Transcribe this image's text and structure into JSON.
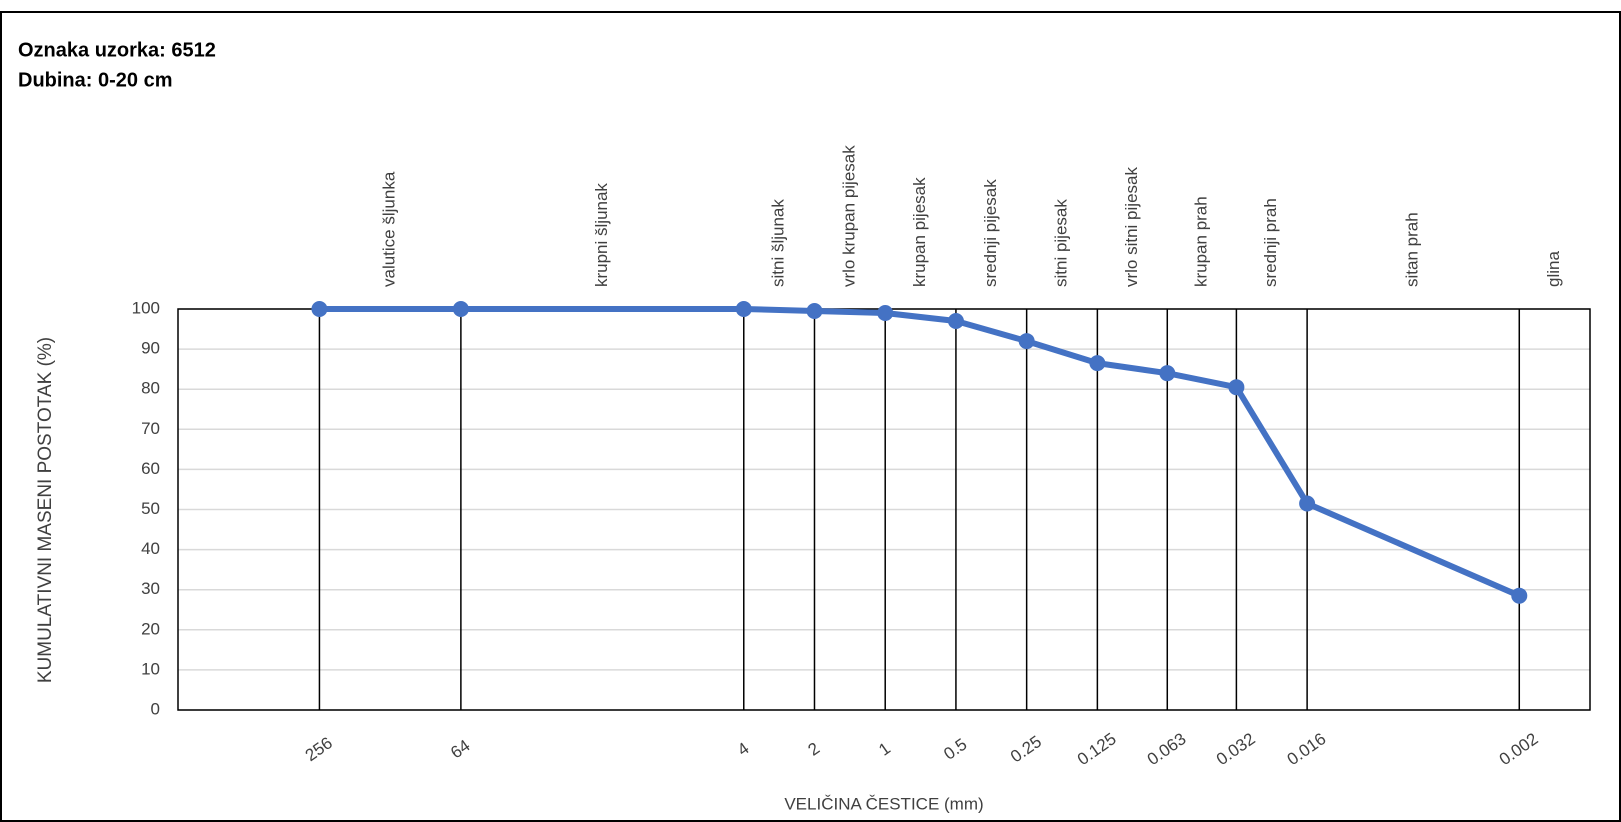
{
  "chart_data": {
    "type": "line",
    "title": "Oznaka uzorka:  6512",
    "subtitle": "Dubina: 0-20 cm",
    "x_label": "VELIČINA ČESTICE (mm)",
    "y_label": "KUMULATIVNI MASENI POSTOTAK (%)",
    "x": [
      256,
      64,
      4,
      2,
      1,
      0.5,
      0.25,
      0.125,
      0.063,
      0.032,
      0.016,
      0.002
    ],
    "series": [
      {
        "name": "6512",
        "color": "#4472c4",
        "values": [
          100,
          100,
          100,
          99.5,
          99,
          97,
          92,
          86.5,
          84,
          80.5,
          51.5,
          28.5
        ]
      }
    ],
    "xlim": [
      1024,
      0.001
    ],
    "xticks": [
      256,
      64,
      4,
      2,
      1,
      0.5,
      0.25,
      0.125,
      0.063,
      0.032,
      0.016,
      0.002
    ],
    "x_log": true,
    "ylim": [
      0,
      100
    ],
    "yticks": [
      0,
      10,
      20,
      30,
      40,
      50,
      60,
      70,
      80,
      90,
      100
    ],
    "grid": true,
    "zones": [
      "valutice šljunka",
      "krupni šljunak",
      "sitni šljunak",
      "vrlo krupan pijesak",
      "krupan pijesak",
      "srednji pijesak",
      "sitni pijesak",
      "vrlo sitni pijesak",
      "krupan prah",
      "srednji prah",
      "sitan prah",
      "glina"
    ]
  }
}
